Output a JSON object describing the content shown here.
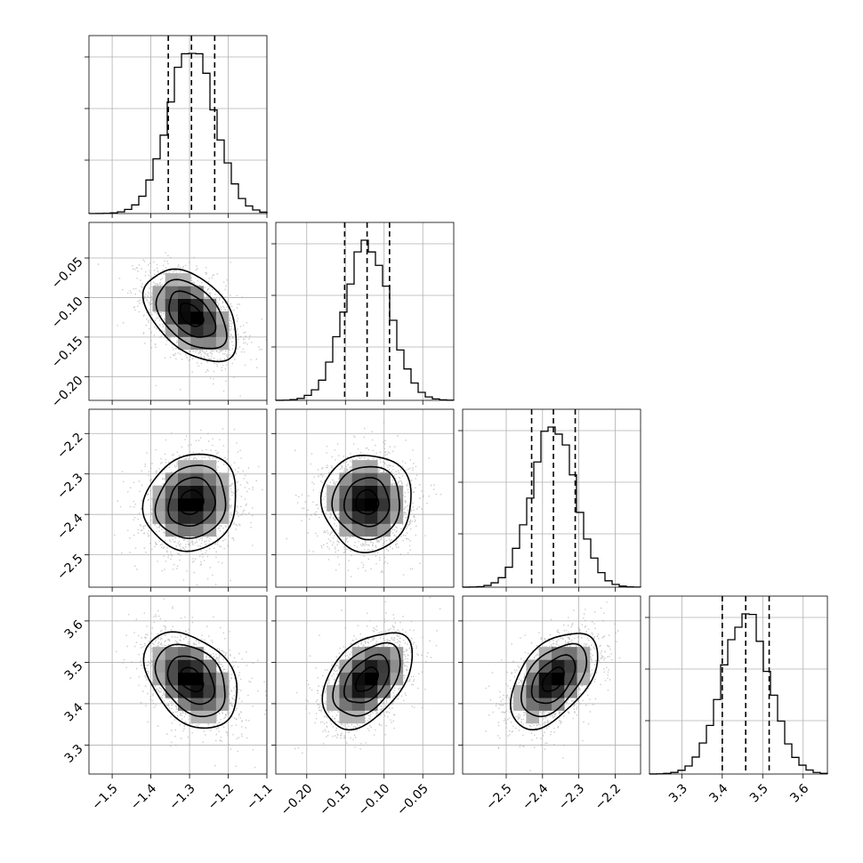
{
  "chart_data": {
    "type": "corner",
    "parameters": [
      {
        "xlim": [
          -1.56,
          -1.1
        ],
        "xticks": [
          -1.5,
          -1.4,
          -1.3,
          -1.2,
          -1.1
        ],
        "xtick_labels": [
          "−1.5",
          "−1.4",
          "−1.3",
          "−1.2",
          "−1.1"
        ],
        "quantiles": [
          -1.355,
          -1.295,
          -1.235
        ],
        "mean": -1.295,
        "sd": 0.06
      },
      {
        "xlim": [
          -0.24,
          -0.01
        ],
        "xticks": [
          -0.2,
          -0.15,
          -0.1,
          -0.05
        ],
        "xtick_labels": [
          "−0.20",
          "−0.15",
          "−0.10",
          "−0.05"
        ],
        "ylim": [
          -0.23,
          -0.005
        ],
        "yticks": [
          -0.2,
          -0.15,
          -0.1,
          -0.05
        ],
        "ytick_labels": [
          "−0.20",
          "−0.15",
          "−0.10",
          "−0.05"
        ],
        "quantiles": [
          -0.151,
          -0.122,
          -0.093
        ],
        "mean": -0.122,
        "sd": 0.029
      },
      {
        "xlim": [
          -2.62,
          -2.13
        ],
        "xticks": [
          -2.5,
          -2.4,
          -2.3,
          -2.2
        ],
        "xtick_labels": [
          "−2.5",
          "−2.4",
          "−2.3",
          "−2.2"
        ],
        "ylim": [
          -2.58,
          -2.14
        ],
        "yticks": [
          -2.5,
          -2.4,
          -2.3,
          -2.2
        ],
        "ytick_labels": [
          "−2.5",
          "−2.4",
          "−2.3",
          "−2.2"
        ],
        "quantiles": [
          -2.43,
          -2.37,
          -2.31
        ],
        "mean": -2.37,
        "sd": 0.06
      },
      {
        "xlim": [
          3.22,
          3.66
        ],
        "xticks": [
          3.3,
          3.4,
          3.5,
          3.6
        ],
        "xtick_labels": [
          "3.3",
          "3.4",
          "3.5",
          "3.6"
        ],
        "ylim": [
          3.23,
          3.66
        ],
        "yticks": [
          3.3,
          3.4,
          3.5,
          3.6
        ],
        "ytick_labels": [
          "3.3",
          "3.4",
          "3.5",
          "3.6"
        ],
        "quantiles": [
          3.4,
          3.458,
          3.516
        ],
        "mean": 3.458,
        "sd": 0.058
      }
    ],
    "correlations": [
      [
        1.0,
        -0.45,
        0.12,
        -0.35
      ],
      [
        -0.45,
        1.0,
        0.0,
        0.45
      ],
      [
        0.12,
        0.0,
        1.0,
        0.5
      ],
      [
        -0.35,
        0.45,
        0.5,
        1.0
      ]
    ],
    "histogram_bins": 25,
    "contour_levels_sigma": [
      0.5,
      1.0,
      1.5,
      2.0
    ],
    "grid": true,
    "colors": {
      "line": "#000000",
      "points": "#a0a0a0",
      "grid": "#b0b0b0"
    }
  }
}
